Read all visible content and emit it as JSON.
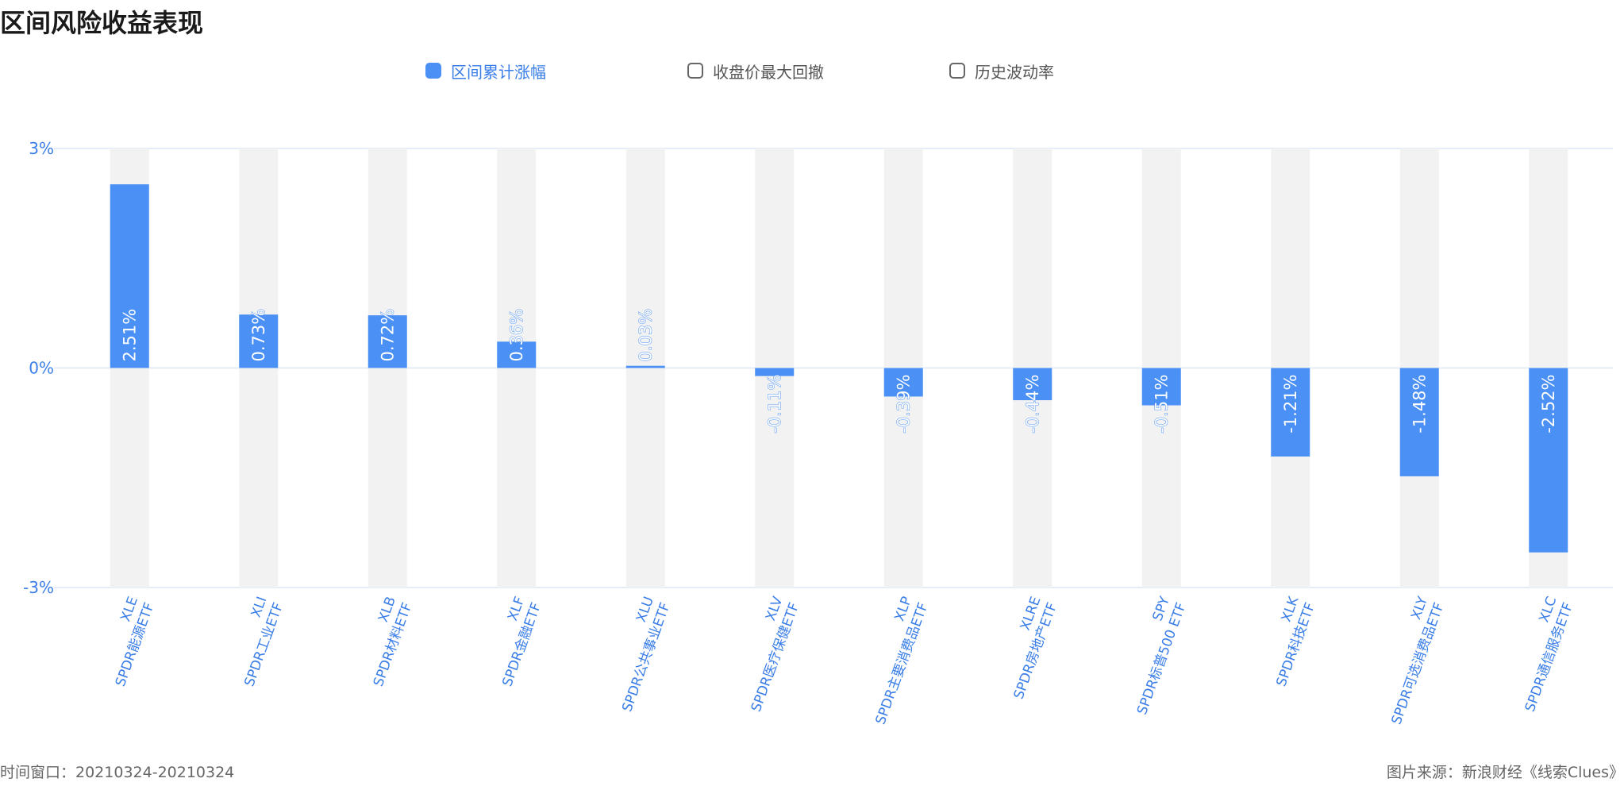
{
  "title": "区间风险收益表现",
  "legend": [
    {
      "label": "区间累计涨幅",
      "active": true
    },
    {
      "label": "收盘价最大回撤",
      "active": false
    },
    {
      "label": "历史波动率",
      "active": false
    }
  ],
  "footer": {
    "window": "时间窗口：20210324-20210324",
    "source": "图片来源：新浪财经《线索Clues》"
  },
  "colors": {
    "bar": "#4a90f5",
    "background_bar": "#f2f2f2",
    "axis_text": "#3a7ee8",
    "grid": "#e3ecf7"
  },
  "chart_data": {
    "type": "bar",
    "ylim": [
      -3,
      3
    ],
    "yticks": [
      {
        "value": 3,
        "label": "3%"
      },
      {
        "value": 0,
        "label": "0%"
      },
      {
        "value": -3,
        "label": "-3%"
      }
    ],
    "categories": [
      {
        "code": "XLE",
        "name": "SPDR能源ETF"
      },
      {
        "code": "XLI",
        "name": "SPDR工业ETF"
      },
      {
        "code": "XLB",
        "name": "SPDR材料ETF"
      },
      {
        "code": "XLF",
        "name": "SPDR金融ETF"
      },
      {
        "code": "XLU",
        "name": "SPDR公共事业ETF"
      },
      {
        "code": "XLV",
        "name": "SPDR医疗保健ETF"
      },
      {
        "code": "XLP",
        "name": "SPDR主要消费品ETF"
      },
      {
        "code": "XLRE",
        "name": "SPDR房地产ETF"
      },
      {
        "code": "SPY",
        "name": "SPDR标普500 ETF"
      },
      {
        "code": "XLK",
        "name": "SPDR科技ETF"
      },
      {
        "code": "XLY",
        "name": "SPDR可选消费品ETF"
      },
      {
        "code": "XLC",
        "name": "SPDR通信服务ETF"
      }
    ],
    "series": [
      {
        "name": "区间累计涨幅",
        "values": [
          2.51,
          0.73,
          0.72,
          0.36,
          0.03,
          -0.11,
          -0.39,
          -0.44,
          -0.51,
          -1.21,
          -1.48,
          -2.52
        ],
        "labels": [
          "2.51%",
          "0.73%",
          "0.72%",
          "0.36%",
          "0.03%",
          "-0.11%",
          "-0.39%",
          "-0.44%",
          "-0.51%",
          "-1.21%",
          "-1.48%",
          "-2.52%"
        ]
      }
    ]
  }
}
